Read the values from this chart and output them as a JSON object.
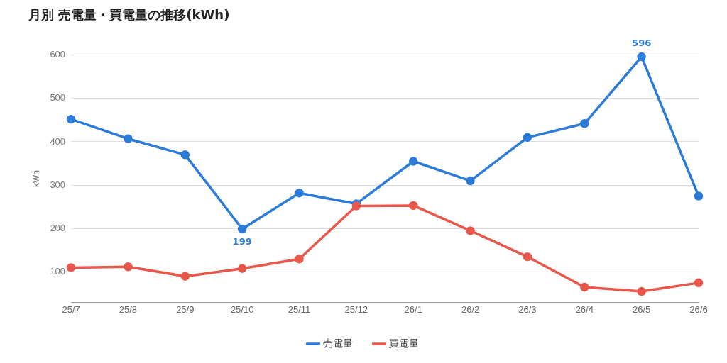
{
  "chart_data": {
    "type": "line",
    "title": "月別 売電量・買電量の推移(kWh)",
    "ylabel": "kWh",
    "categories": [
      "25/7",
      "25/8",
      "25/9",
      "25/10",
      "25/11",
      "25/12",
      "26/1",
      "26/2",
      "26/3",
      "26/4",
      "26/5",
      "26/6"
    ],
    "series": [
      {
        "name": "売電量",
        "color": "#2b7bd9",
        "values": [
          452,
          407,
          370,
          199,
          282,
          257,
          355,
          310,
          410,
          442,
          596,
          275
        ],
        "value_labels": [
          null,
          null,
          null,
          "199",
          null,
          null,
          null,
          null,
          null,
          null,
          "596",
          null
        ]
      },
      {
        "name": "買電量",
        "color": "#e8574a",
        "values": [
          110,
          112,
          90,
          108,
          130,
          252,
          253,
          195,
          135,
          65,
          55,
          75
        ]
      }
    ],
    "ylim": [
      30,
      600
    ],
    "yticks": [
      100,
      200,
      300,
      400,
      500,
      600
    ],
    "grid": "y",
    "legend": "bottom",
    "marker": "circle",
    "line_style": "solid"
  }
}
